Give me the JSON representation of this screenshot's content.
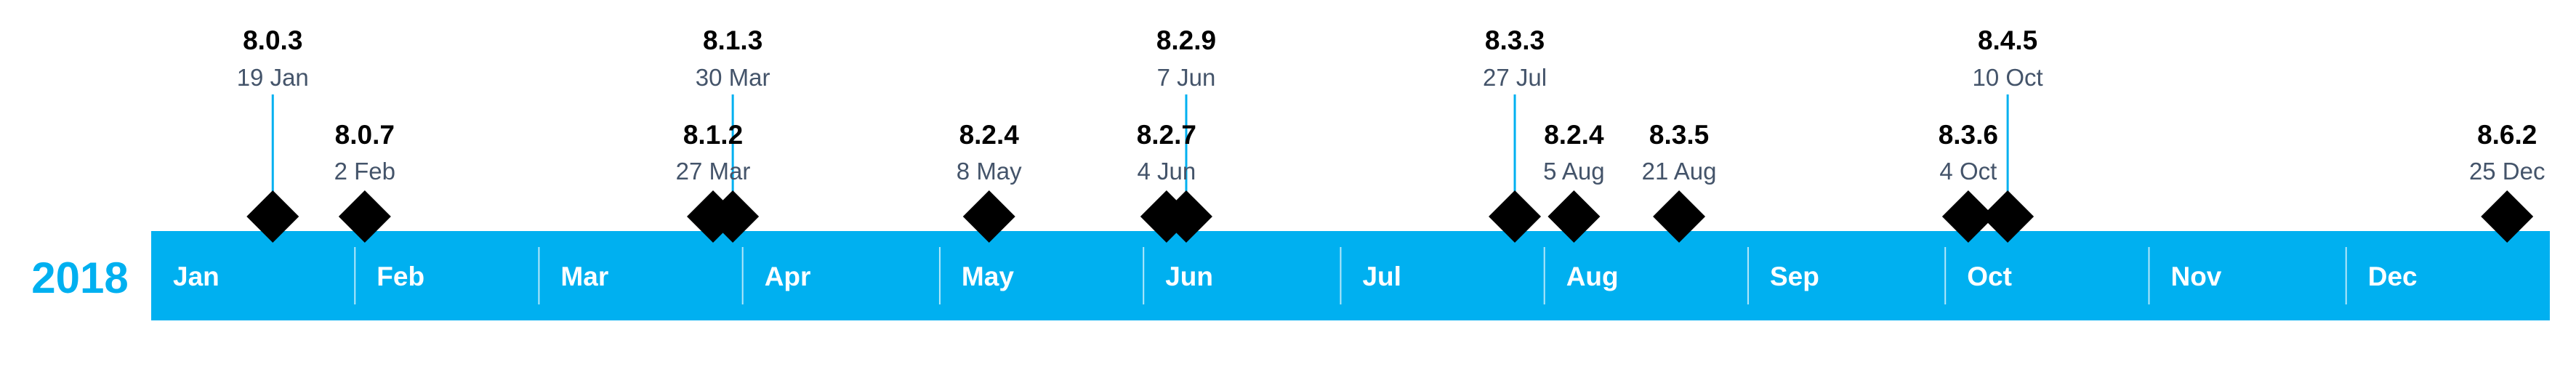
{
  "timeline": {
    "year": "2018",
    "colors": {
      "bar": "#00b0f0",
      "year_text": "#00b0f0",
      "separator": "#ffffff",
      "marker": "#000000",
      "connector": "#00b0f0",
      "version_text": "#000000",
      "date_text": "#44546a",
      "month_text": "#ffffff"
    },
    "months": [
      "Jan",
      "Feb",
      "Mar",
      "Apr",
      "May",
      "Jun",
      "Jul",
      "Aug",
      "Sep",
      "Oct",
      "Nov",
      "Dec"
    ],
    "marker_icon": "diamond",
    "releases": [
      {
        "version": "8.0.3",
        "date": "19 Jan",
        "day_of_year": 19,
        "label_tier": "high"
      },
      {
        "version": "8.0.7",
        "date": "2 Feb",
        "day_of_year": 33,
        "label_tier": "low"
      },
      {
        "version": "8.1.2",
        "date": "27 Mar",
        "day_of_year": 86,
        "label_tier": "low"
      },
      {
        "version": "8.1.3",
        "date": "30 Mar",
        "day_of_year": 89,
        "label_tier": "high"
      },
      {
        "version": "8.2.4",
        "date": "8 May",
        "day_of_year": 128,
        "label_tier": "low"
      },
      {
        "version": "8.2.7",
        "date": "4 Jun",
        "day_of_year": 155,
        "label_tier": "low"
      },
      {
        "version": "8.2.9",
        "date": "7 Jun",
        "day_of_year": 158,
        "label_tier": "high"
      },
      {
        "version": "8.3.3",
        "date": "27 Jul",
        "day_of_year": 208,
        "label_tier": "high"
      },
      {
        "version": "8.2.4",
        "date": "5 Aug",
        "day_of_year": 217,
        "label_tier": "low"
      },
      {
        "version": "8.3.5",
        "date": "21 Aug",
        "day_of_year": 233,
        "label_tier": "low"
      },
      {
        "version": "8.3.6",
        "date": "4 Oct",
        "day_of_year": 277,
        "label_tier": "low"
      },
      {
        "version": "8.4.5",
        "date": "10 Oct",
        "day_of_year": 283,
        "label_tier": "high"
      },
      {
        "version": "8.6.2",
        "date": "25 Dec",
        "day_of_year": 359,
        "label_tier": "low"
      }
    ]
  }
}
